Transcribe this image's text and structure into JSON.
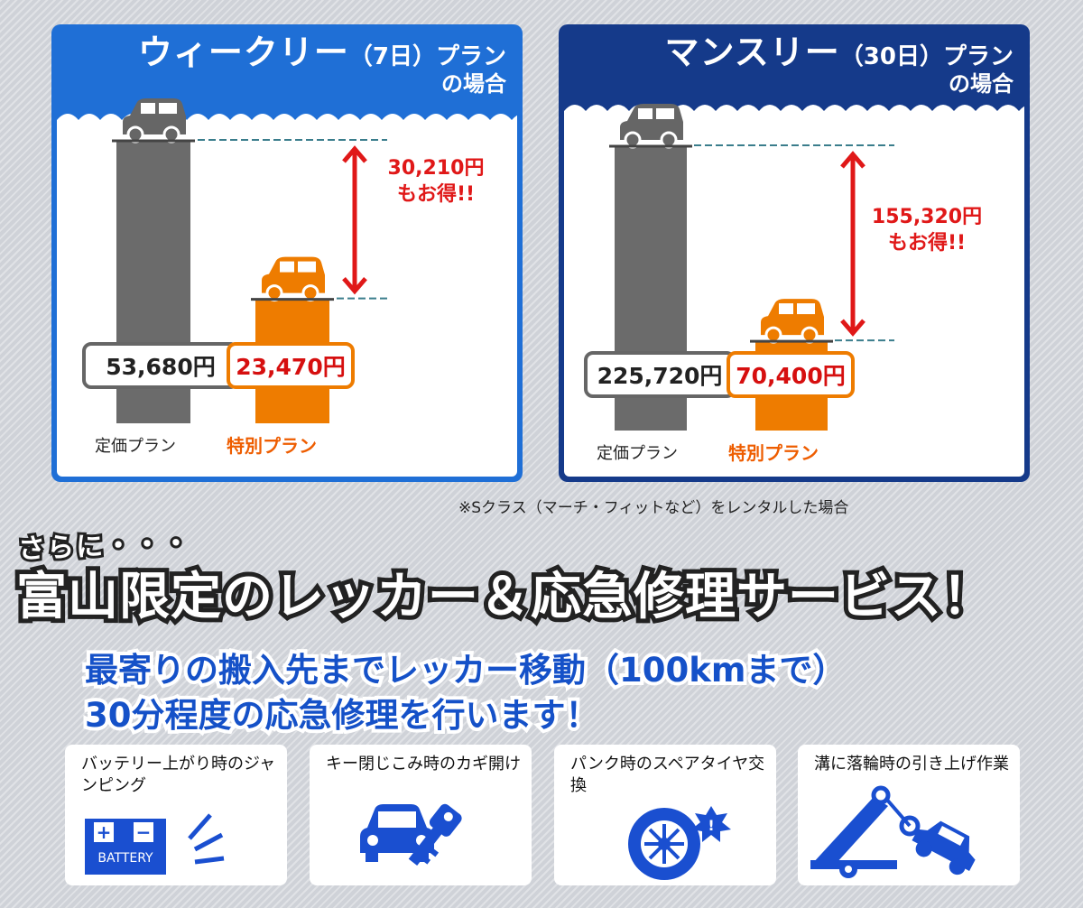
{
  "chart_data": [
    {
      "type": "bar",
      "title": "ウィークリー（7日）プランの場合",
      "title_main": "ウィークリー",
      "title_paren": "（7日）",
      "title_suffix1": "プラン",
      "title_suffix2": "の場合",
      "categories": [
        "定価プラン",
        "特別プラン"
      ],
      "values": [
        53680,
        23470
      ],
      "value_labels": [
        "53,680円",
        "23,470円"
      ],
      "saving_value": 30210,
      "saving_line1": "30,210円",
      "saving_line2": "もお得!!",
      "colors": [
        "#6b6b6b",
        "#ee7c00"
      ],
      "ylim": [
        0,
        62000
      ]
    },
    {
      "type": "bar",
      "title": "マンスリー（30日）プランの場合",
      "title_main": "マンスリー",
      "title_paren": "（30日）",
      "title_suffix1": "プラン",
      "title_suffix2": "の場合",
      "categories": [
        "定価プラン",
        "特別プラン"
      ],
      "values": [
        225720,
        70400
      ],
      "value_labels": [
        "225,720円",
        "70,400円"
      ],
      "saving_value": 155320,
      "saving_line1": "155,320円",
      "saving_line2": "もお得!!",
      "colors": [
        "#6b6b6b",
        "#ee7c00"
      ],
      "ylim": [
        0,
        245000
      ]
    }
  ],
  "footnote": "※Sクラス（マーチ・フィットなど）をレンタルした場合",
  "sarani": "さらに・・・",
  "headline": "富山限定のレッカー＆応急修理サービス！",
  "subline1": "最寄りの搬入先までレッカー移動（100kmまで）",
  "subline2": "30分程度の応急修理を行います！",
  "services": [
    {
      "title": "バッテリー上がり時のジャンピング",
      "icon": "battery-icon",
      "icon_text": "BATTERY"
    },
    {
      "title": "キー閉じこみ時のカギ開け",
      "icon": "car-key-icon"
    },
    {
      "title": "パンク時のスペアタイヤ交換",
      "icon": "tire-icon"
    },
    {
      "title": "溝に落輪時の引き上げ作業",
      "icon": "tow-truck-icon"
    }
  ],
  "colors": {
    "weekly_frame": "#1f6fd6",
    "monthly_frame": "#153a8a",
    "regular_bar": "#6b6b6b",
    "special_bar": "#ee7c00",
    "saving_red": "#e01818",
    "icon_blue": "#1a4fd0"
  }
}
